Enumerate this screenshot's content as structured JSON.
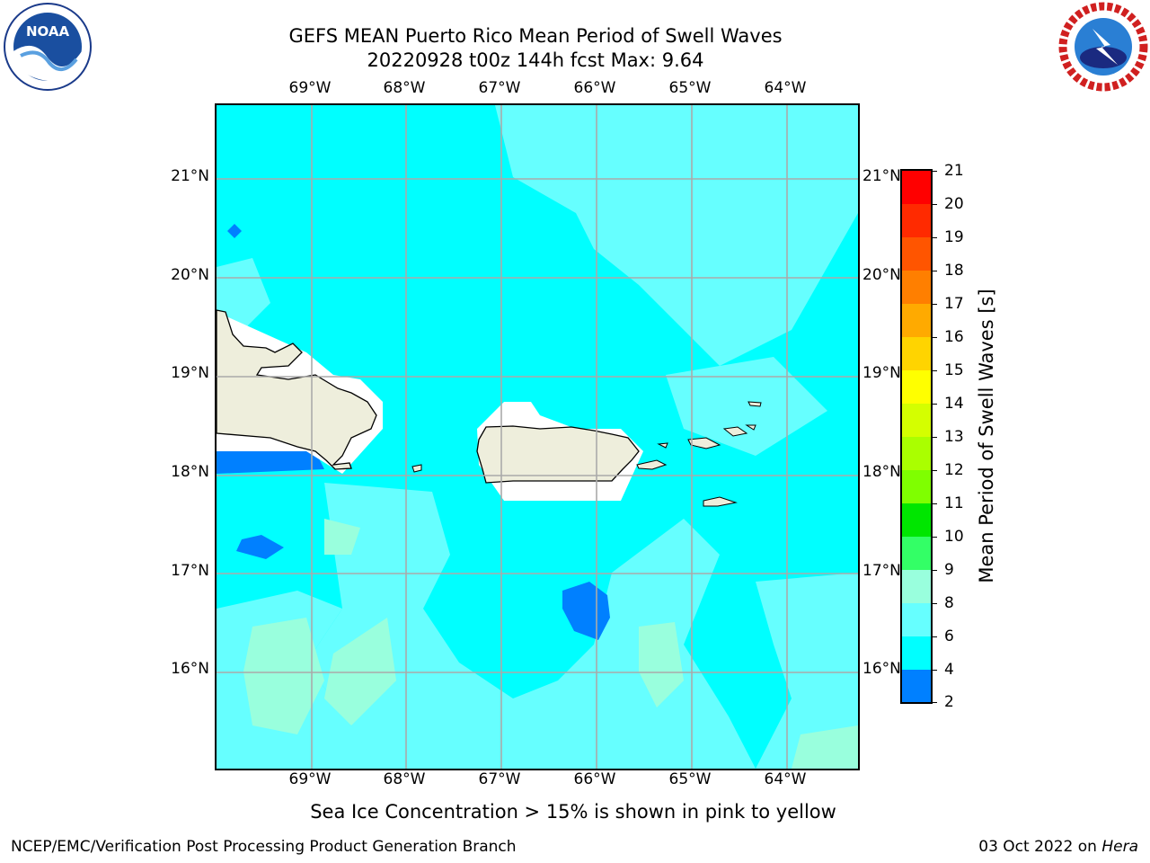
{
  "header": {
    "title_line1": "GEFS MEAN Puerto Rico Mean Period of Swell Waves",
    "title_line2": "20220928 t00z 144h fcst   Max: 9.64"
  },
  "logos": {
    "noaa": "NOAA",
    "nws": "NATIONAL WEATHER SERVICE"
  },
  "map": {
    "lon_labels": [
      "69°W",
      "68°W",
      "67°W",
      "66°W",
      "65°W",
      "64°W"
    ],
    "lat_labels": [
      "21°N",
      "20°N",
      "19°N",
      "18°N",
      "17°N",
      "16°N"
    ],
    "land_color": "#eeeedc",
    "ocean_base_color": "#00ffff"
  },
  "colorbar": {
    "label": "Mean Period of Swell Waves [s]",
    "ticks": [
      "21",
      "20",
      "19",
      "18",
      "17",
      "16",
      "15",
      "14",
      "13",
      "12",
      "11",
      "10",
      "9",
      "8",
      "6",
      "4",
      "2"
    ],
    "colors": [
      "#ff0000",
      "#ff2a00",
      "#ff5500",
      "#ff7f00",
      "#ffaa00",
      "#ffd400",
      "#ffff00",
      "#d4ff00",
      "#aaff00",
      "#7fff00",
      "#00e600",
      "#33ff66",
      "#99ffdd",
      "#66ffff",
      "#00ffff",
      "#0080ff",
      "#0000ff"
    ]
  },
  "footer": {
    "subtitle": "Sea Ice Concentration > 15% is shown in pink to yellow",
    "left": "NCEP/EMC/Verification Post Processing Product Generation Branch",
    "right_date": "03 Oct 2022 on",
    "right_host": "Hera"
  }
}
